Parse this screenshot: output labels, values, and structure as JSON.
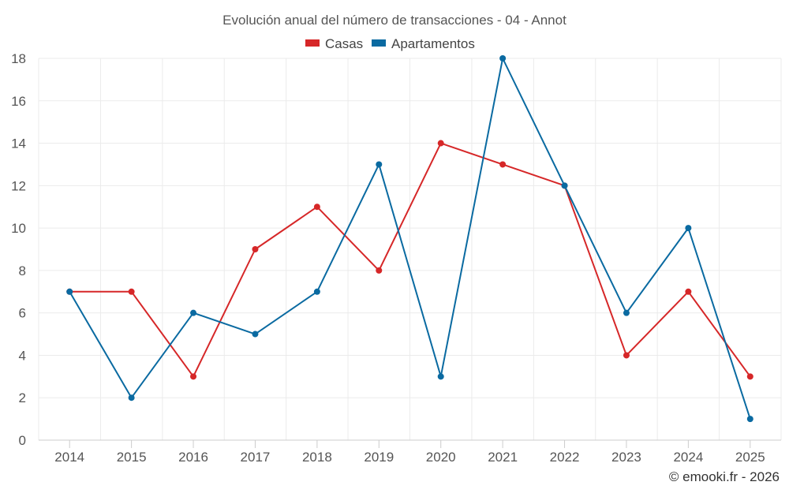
{
  "chart_data": {
    "type": "line",
    "title": "Evolución anual del número de transacciones - 04 - Annot",
    "categories": [
      "2014",
      "2015",
      "2016",
      "2017",
      "2018",
      "2019",
      "2020",
      "2021",
      "2022",
      "2023",
      "2024",
      "2025"
    ],
    "series": [
      {
        "name": "Casas",
        "color": "#d62728",
        "values": [
          7,
          7,
          3,
          9,
          11,
          8,
          14,
          13,
          12,
          4,
          7,
          3
        ]
      },
      {
        "name": "Apartamentos",
        "color": "#0a6aa1",
        "values": [
          7,
          2,
          6,
          5,
          7,
          13,
          3,
          18,
          12,
          6,
          10,
          1
        ]
      }
    ],
    "ylim": [
      0,
      18
    ],
    "yticks": [
      0,
      2,
      4,
      6,
      8,
      10,
      12,
      14,
      16,
      18
    ],
    "grid": true,
    "legend_position": "top-center",
    "xlabel": "",
    "ylabel": ""
  },
  "credit": "© emooki.fr - 2026"
}
